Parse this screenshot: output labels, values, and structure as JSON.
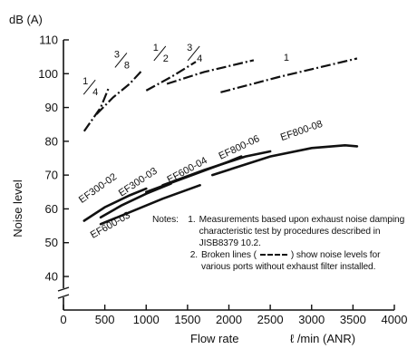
{
  "chart_data": {
    "type": "line",
    "y_unit": "dB (A)",
    "ylabel": "Noise level",
    "xlabel": "Flow rate",
    "x_unit": "ℓ /min (ANR)",
    "xlim": [
      0,
      4000
    ],
    "ylim": [
      35,
      110
    ],
    "y_axis_break": true,
    "x_ticks": [
      0,
      500,
      1000,
      1500,
      2000,
      2500,
      3000,
      3500,
      4000
    ],
    "y_ticks": [
      40,
      50,
      60,
      70,
      80,
      90,
      100,
      110
    ],
    "grid": false,
    "solid_series": [
      {
        "name": "EF300-02",
        "x": [
          250,
          500,
          800,
          1000
        ],
        "y": [
          56.5,
          60.5,
          64,
          66
        ]
      },
      {
        "name": "EF300-03",
        "x": [
          450,
          700,
          1000,
          1300
        ],
        "y": [
          57.5,
          61,
          64.5,
          67.5
        ]
      },
      {
        "name": "EF600-03",
        "x": [
          450,
          800,
          1200,
          1650
        ],
        "y": [
          55.5,
          59,
          63,
          67
        ]
      },
      {
        "name": "EF600-04",
        "x": [
          1000,
          1500,
          2000,
          2150
        ],
        "y": [
          65,
          69.5,
          74,
          75.5
        ]
      },
      {
        "name": "EF800-06",
        "x": [
          1200,
          1700,
          2200,
          2500
        ],
        "y": [
          67,
          71.5,
          75.5,
          77
        ]
      },
      {
        "name": "EF800-08",
        "x": [
          1800,
          2500,
          3000,
          3400,
          3550
        ],
        "y": [
          70,
          75.5,
          78,
          78.8,
          78.5
        ]
      }
    ],
    "broken_series": [
      {
        "name": "1/4",
        "x": [
          250,
          450,
          550
        ],
        "y": [
          83,
          90,
          96
        ]
      },
      {
        "name": "3/8",
        "x": [
          400,
          600,
          800,
          950
        ],
        "y": [
          88,
          93,
          97,
          101
        ]
      },
      {
        "name": "1/2",
        "x": [
          1000,
          1300,
          1600
        ],
        "y": [
          95,
          99,
          103.5
        ]
      },
      {
        "name": "3/4",
        "x": [
          1250,
          1700,
          2300
        ],
        "y": [
          97,
          100.5,
          104
        ]
      },
      {
        "name": "1",
        "x": [
          1900,
          2600,
          3550
        ],
        "y": [
          94.5,
          99,
          104.5
        ]
      }
    ],
    "port_labels": [
      {
        "num": "1",
        "den": "4",
        "x": 320,
        "y": 96
      },
      {
        "num": "3",
        "den": "8",
        "x": 700,
        "y": 104
      },
      {
        "num": "1",
        "den": "2",
        "x": 1170,
        "y": 106
      },
      {
        "num": "3",
        "den": "4",
        "x": 1580,
        "y": 106
      },
      {
        "num": "1",
        "den": "",
        "x": 2750,
        "y": 103
      }
    ],
    "notes": {
      "prefix": "Notes:",
      "items": [
        {
          "num": "1.",
          "text": "Measurements based upon exhaust noise damping characteristic test by procedures described in JISB8379 10.2."
        },
        {
          "num": "2.",
          "text_before": "Broken lines (",
          "text_after": ") show noise levels for various ports without exhaust filter installed."
        }
      ]
    }
  }
}
